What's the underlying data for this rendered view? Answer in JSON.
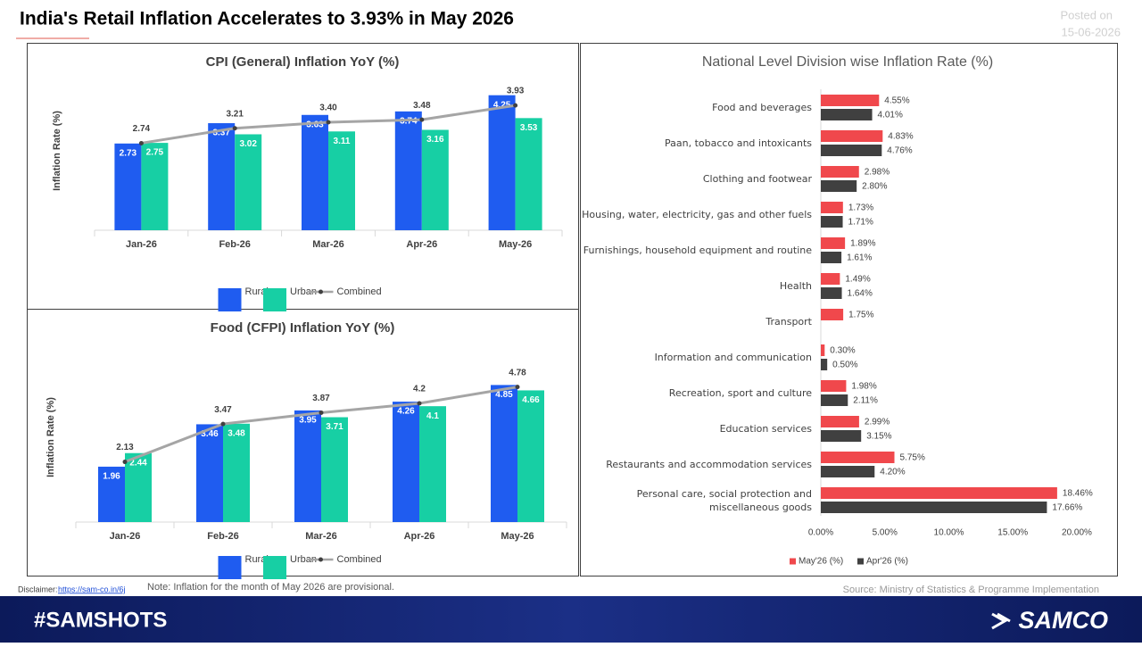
{
  "header": {
    "title": "India's Retail Inflation Accelerates to 3.93%  in May 2026",
    "posted_label": "Posted on",
    "posted_date": "15-06-2026"
  },
  "chart_data": [
    {
      "type": "combo",
      "title": "CPI (General) Inflation YoY (%)",
      "y_label": "Inflation Rate (%)",
      "categories": [
        "Jan-26",
        "Feb-26",
        "Mar-26",
        "Apr-26",
        "May-26"
      ],
      "ylim": [
        0,
        5
      ],
      "series": [
        {
          "name": "Rural",
          "type": "bar",
          "color": "#1f5cf0",
          "values": [
            2.73,
            3.37,
            3.63,
            3.74,
            4.25
          ]
        },
        {
          "name": "Urban",
          "type": "bar",
          "color": "#17cfa4",
          "values": [
            2.75,
            3.02,
            3.11,
            3.16,
            3.53
          ]
        },
        {
          "name": "Combined",
          "type": "line",
          "color": "#a5a5a5",
          "values": [
            2.74,
            3.21,
            3.4,
            3.48,
            3.93
          ],
          "value_labels": [
            "2.74",
            "3.21",
            "3.40",
            "3.48",
            "3.93"
          ]
        }
      ]
    },
    {
      "type": "combo",
      "title": "Food (CFPI) Inflation YoY (%)",
      "y_label": "Inflation Rate (%)",
      "categories": [
        "Jan-26",
        "Feb-26",
        "Mar-26",
        "Apr-26",
        "May-26"
      ],
      "ylim": [
        0,
        6
      ],
      "series": [
        {
          "name": "Rural",
          "type": "bar",
          "color": "#1f5cf0",
          "values": [
            1.96,
            3.46,
            3.95,
            4.26,
            4.85
          ]
        },
        {
          "name": "Urban",
          "type": "bar",
          "color": "#17cfa4",
          "values": [
            2.44,
            3.48,
            3.71,
            4.1,
            4.66
          ]
        },
        {
          "name": "Combined",
          "type": "line",
          "color": "#a5a5a5",
          "values": [
            2.13,
            3.47,
            3.87,
            4.2,
            4.78
          ]
        }
      ]
    },
    {
      "type": "barh",
      "title": "National Level Division wise Inflation Rate (%)",
      "categories": [
        "Food and beverages",
        "Paan, tobacco and intoxicants",
        "Clothing and footwear",
        "Housing, water, electricity, gas and other fuels",
        "Furnishings, household equipment and routine",
        "Health",
        "Transport",
        "Information and communication",
        "Recreation, sport and culture",
        "Education services",
        "Restaurants and accommodation services",
        "Personal care, social protection and miscellaneous goods"
      ],
      "xlim": [
        0,
        20
      ],
      "xticks": [
        {
          "value": 0,
          "label": "0.00%"
        },
        {
          "value": 5,
          "label": "5.00%"
        },
        {
          "value": 10,
          "label": "10.00%"
        },
        {
          "value": 15,
          "label": "15.00%"
        },
        {
          "value": 20,
          "label": "20.00%"
        }
      ],
      "series": [
        {
          "name": "May'26 (%)",
          "color": "#f0484c",
          "values": [
            4.55,
            4.83,
            2.98,
            1.73,
            1.89,
            1.49,
            1.75,
            0.3,
            1.98,
            2.99,
            5.75,
            18.46
          ],
          "value_labels": [
            "4.55%",
            "4.83%",
            "2.98%",
            "1.73%",
            "1.89%",
            "1.49%",
            "1.75%",
            "0.30%",
            "1.98%",
            "2.99%",
            "5.75%",
            "18.46%"
          ]
        },
        {
          "name": "Apr'26 (%)",
          "color": "#404040",
          "values": [
            4.01,
            4.76,
            2.8,
            1.71,
            1.61,
            1.64,
            null,
            0.5,
            2.11,
            3.15,
            4.2,
            17.66
          ],
          "value_labels": [
            "4.01%",
            "4.76%",
            "2.80%",
            "1.71%",
            "1.61%",
            "1.64%",
            null,
            "0.50%",
            "2.11%",
            "3.15%",
            "4.20%",
            "17.66%"
          ]
        }
      ]
    }
  ],
  "footer": {
    "disclaimer_label": "Disclaimer:",
    "disclaimer_link": "https://sam-co.in/6j",
    "note": "Note:  Inflation for the month of May 2026 are provisional.",
    "source": "Source: Ministry of Statistics & Programme Implementation",
    "hashtag": "#SAMSHOTS",
    "brand": "SAMCO"
  }
}
